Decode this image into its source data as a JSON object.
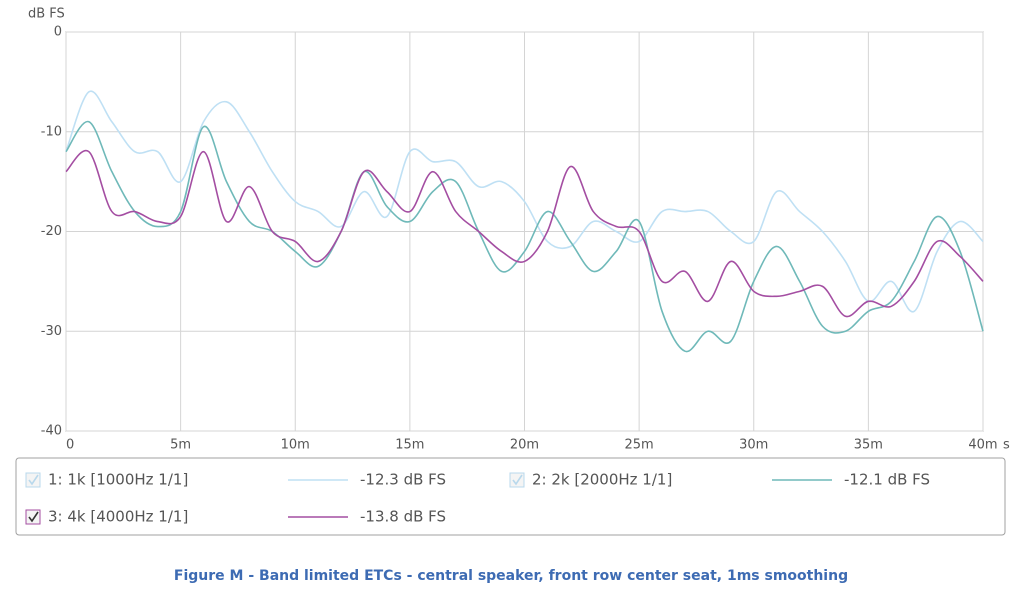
{
  "chart_data": {
    "type": "line",
    "ylabel": "dB FS",
    "xlabel": "s",
    "caption": "Figure M - Band limited ETCs - central speaker, front row center seat, 1ms smoothing",
    "x": [
      0,
      1,
      2,
      3,
      4,
      5,
      6,
      7,
      8,
      9,
      10,
      11,
      12,
      13,
      14,
      15,
      16,
      17,
      18,
      19,
      20,
      21,
      22,
      23,
      24,
      25,
      26,
      27,
      28,
      29,
      30,
      31,
      32,
      33,
      34,
      35,
      36,
      37,
      38,
      39,
      40
    ],
    "xlim": [
      0,
      40
    ],
    "xticks": [
      {
        "value": 0,
        "label": "0"
      },
      {
        "value": 5,
        "label": "5m"
      },
      {
        "value": 10,
        "label": "10m"
      },
      {
        "value": 15,
        "label": "15m"
      },
      {
        "value": 20,
        "label": "20m"
      },
      {
        "value": 25,
        "label": "25m"
      },
      {
        "value": 30,
        "label": "30m"
      },
      {
        "value": 35,
        "label": "35m"
      },
      {
        "value": 40,
        "label": "40m"
      }
    ],
    "ylim": [
      -40,
      0
    ],
    "yticks": [
      0,
      -10,
      -20,
      -30,
      -40
    ],
    "grid": true,
    "series": [
      {
        "name": "1: 1k [1000Hz 1/1]",
        "color": "#bfe0f4",
        "text_color": "#b8d8ec",
        "checked": true,
        "legend_text": "-12.3 dB FS",
        "values": [
          -12,
          -6,
          -9,
          -12,
          -12,
          -15,
          -9,
          -7,
          -10,
          -14,
          -17,
          -18,
          -19.5,
          -16,
          -18.5,
          -12,
          -13,
          -13,
          -15.5,
          -15,
          -17,
          -21,
          -21.5,
          -19,
          -20,
          -21,
          -18,
          -18,
          -18,
          -20,
          -21,
          -16,
          -18,
          -20,
          -23,
          -27,
          -25,
          -28,
          -22,
          -19,
          -21
        ]
      },
      {
        "name": "2: 2k [2000Hz 1/1]",
        "color": "#6fb9b9",
        "text_color": "#b8d8ec",
        "checked": true,
        "legend_text": "-12.1 dB FS",
        "values": [
          -12,
          -9,
          -14,
          -18,
          -19.5,
          -18,
          -9.5,
          -15,
          -19,
          -20,
          -22,
          -23.5,
          -20,
          -14,
          -17.5,
          -19,
          -16,
          -15,
          -20,
          -24,
          -22,
          -18,
          -21,
          -24,
          -22,
          -19,
          -28,
          -32,
          -30,
          -31,
          -25,
          -21.5,
          -25,
          -29.5,
          -30,
          -28,
          -27,
          -23,
          -18.5,
          -22,
          -30
        ]
      },
      {
        "name": "3: 4k [4000Hz 1/1]",
        "color": "#a44ea2",
        "text_color": "#a44ea2",
        "checked": true,
        "legend_text": "-13.8 dB FS",
        "values": [
          -14,
          -12,
          -18,
          -18,
          -19,
          -18.5,
          -12,
          -19,
          -15.5,
          -20,
          -21,
          -23,
          -20,
          -14,
          -16,
          -18,
          -14,
          -18,
          -20,
          -22,
          -23,
          -20,
          -13.5,
          -18,
          -19.5,
          -20,
          -25,
          -24,
          -27,
          -23,
          -26,
          -26.5,
          -26,
          -25.5,
          -28.5,
          -27,
          -27.5,
          -25,
          -21,
          -22.5,
          -25
        ]
      }
    ]
  }
}
